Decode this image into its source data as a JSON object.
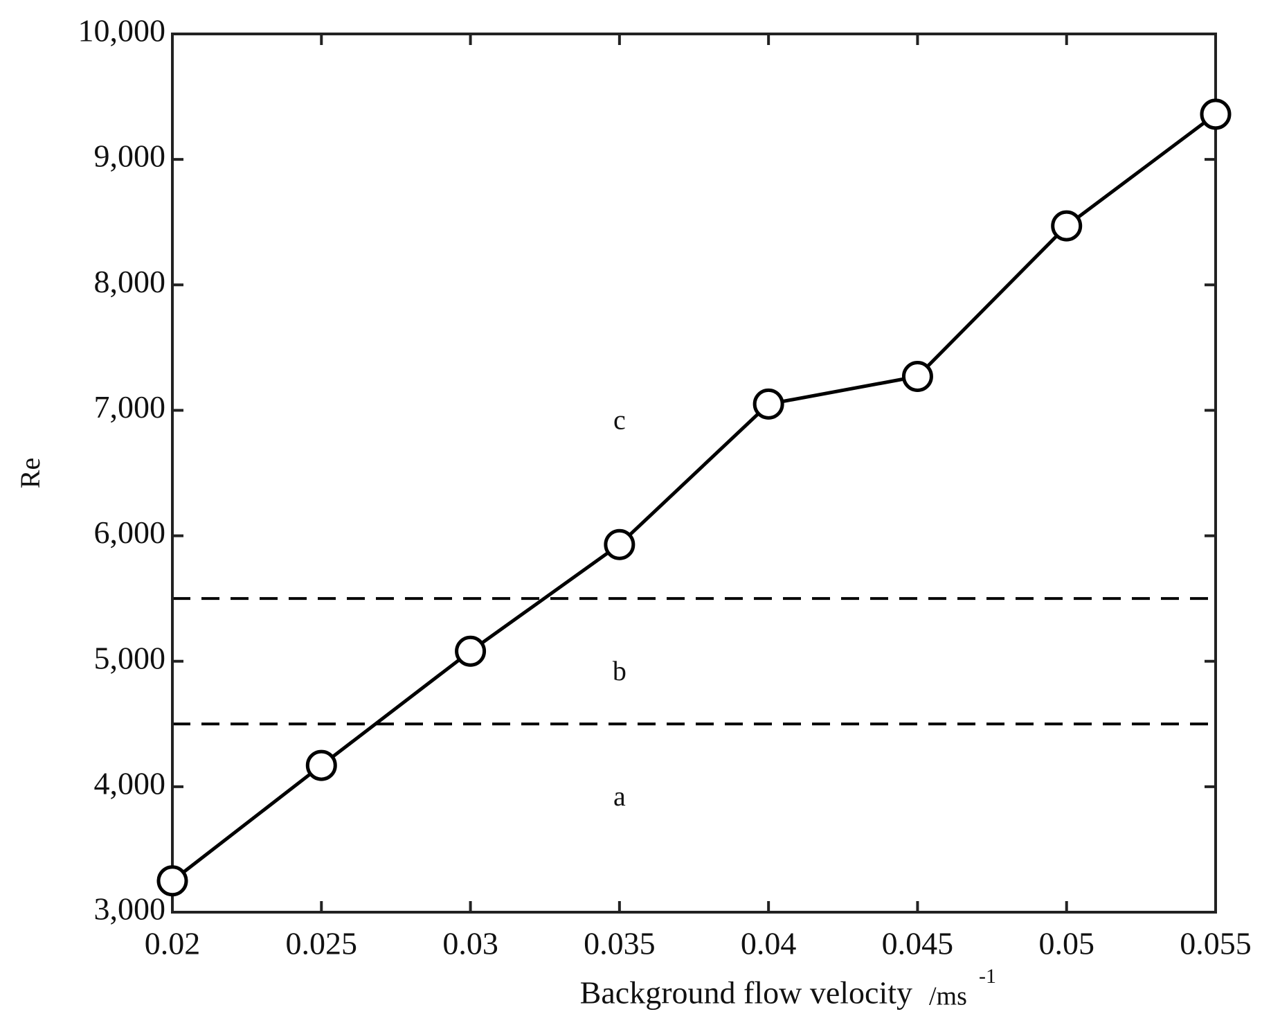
{
  "chart_data": {
    "type": "line",
    "xlabel": "Background flow velocity",
    "xlabel_unit": "/ms",
    "xlabel_unit_power": "-1",
    "ylabel": "Re",
    "x": [
      0.02,
      0.025,
      0.03,
      0.035,
      0.04,
      0.045,
      0.05,
      0.055
    ],
    "series": [
      {
        "color": "#000000",
        "marker": "circle-open",
        "values": [
          3250,
          4170,
          5080,
          5930,
          7050,
          7270,
          8470,
          9360
        ]
      }
    ],
    "hlines": [
      5500,
      4500
    ],
    "hline_style": "dashed",
    "annotations": [
      {
        "text": "c",
        "x": 0.035,
        "y": 6900
      },
      {
        "text": "b",
        "x": 0.035,
        "y": 4900
      },
      {
        "text": "a",
        "x": 0.035,
        "y": 3900
      }
    ],
    "xlim": [
      0.02,
      0.055
    ],
    "xticks": [
      0.02,
      0.025,
      0.03,
      0.035,
      0.04,
      0.045,
      0.05,
      0.055
    ],
    "ylim": [
      3000,
      10000
    ],
    "yticks": [
      {
        "value": 3000,
        "label": "3,000"
      },
      {
        "value": 4000,
        "label": "4,000"
      },
      {
        "value": 5000,
        "label": "5,000"
      },
      {
        "value": 6000,
        "label": "6,000"
      },
      {
        "value": 7000,
        "label": "7,000"
      },
      {
        "value": 8000,
        "label": "8,000"
      },
      {
        "value": 9000,
        "label": "9,000"
      },
      {
        "value": 10000,
        "label": "10,000"
      }
    ],
    "grid": false
  }
}
